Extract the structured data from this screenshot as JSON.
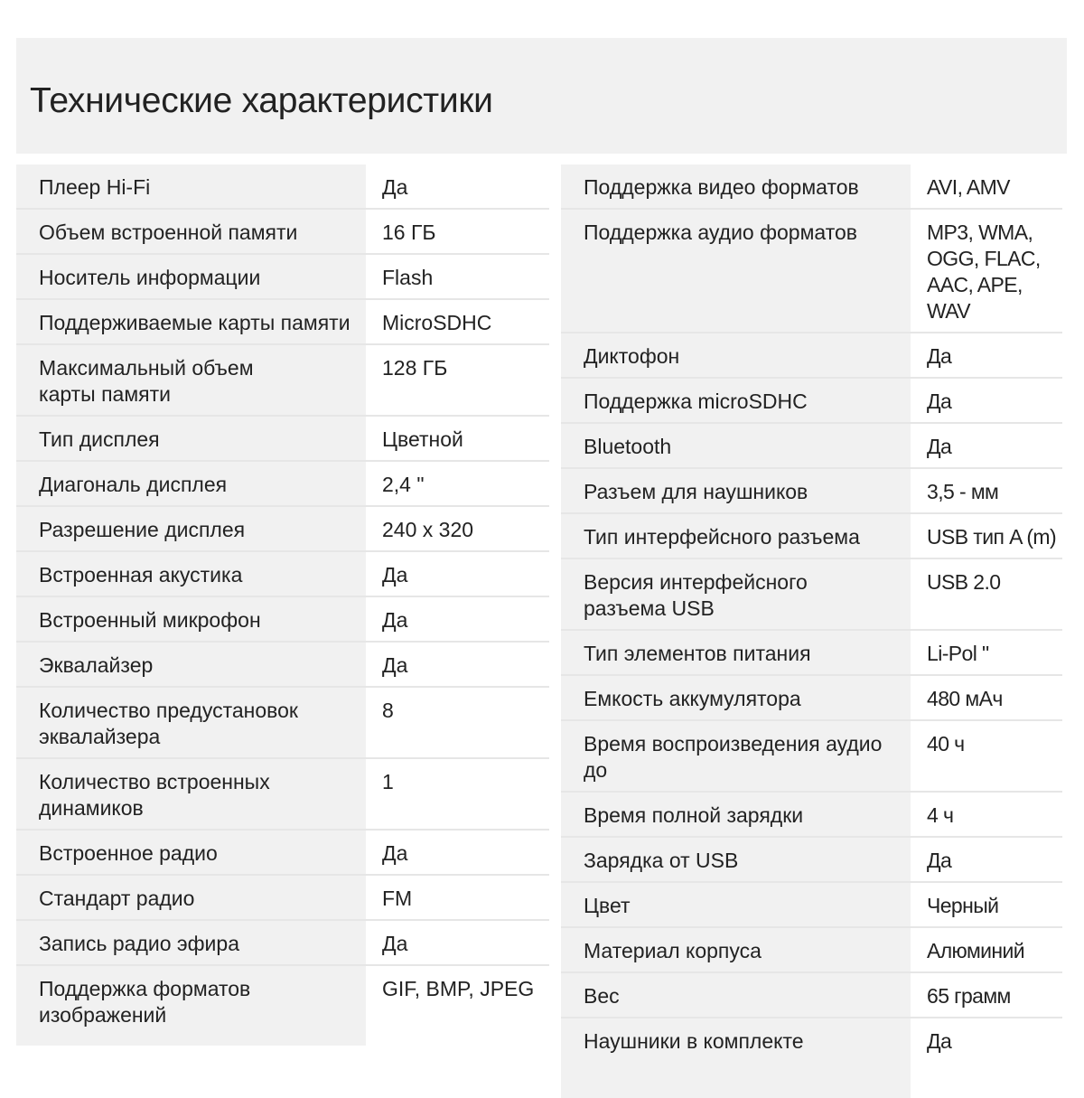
{
  "title": "Технические характеристики",
  "left": [
    {
      "label": "Плеер Hi-Fi",
      "value": "Да"
    },
    {
      "label": "Объем встроенной памяти",
      "value": "16 ГБ"
    },
    {
      "label": "Носитель информации",
      "value": "Flash"
    },
    {
      "label": "Поддерживаемые карты памяти",
      "value": "MicroSDHC"
    },
    {
      "label": "Максимальный объем\nкарты памяти",
      "value": "128 ГБ"
    },
    {
      "label": "Тип дисплея",
      "value": "Цветной"
    },
    {
      "label": "Диагональ дисплея",
      "value": "2,4 \""
    },
    {
      "label": "Разрешение дисплея",
      "value": "240 x 320"
    },
    {
      "label": "Встроенная акустика",
      "value": "Да"
    },
    {
      "label": "Встроенный микрофон",
      "value": "Да"
    },
    {
      "label": "Эквалайзер",
      "value": "Да"
    },
    {
      "label": "Количество предустановок\nэквалайзера",
      "value": "8"
    },
    {
      "label": "Количество встроенных\nдинамиков",
      "value": "1"
    },
    {
      "label": "Встроенное радио",
      "value": "Да"
    },
    {
      "label": "Стандарт радио",
      "value": "FM"
    },
    {
      "label": "Запись радио эфира",
      "value": "Да"
    },
    {
      "label": "Поддержка форматов\nизображений",
      "value": "GIF, BMP, JPEG"
    }
  ],
  "right": [
    {
      "label": "Поддержка видео форматов",
      "value": "AVI, AMV"
    },
    {
      "label": "Поддержка аудио форматов",
      "value": "MP3, WMA,\nOGG, FLAC,\nAAC, APE, WAV"
    },
    {
      "label": "Диктофон",
      "value": "Да"
    },
    {
      "label": "Поддержка microSDHC",
      "value": "Да"
    },
    {
      "label": "Bluetooth",
      "value": "Да"
    },
    {
      "label": "Разъем для наушников",
      "value": "3,5 - мм"
    },
    {
      "label": "Тип интерфейсного разъема",
      "value": "USB тип A (m)"
    },
    {
      "label": "Версия интерфейсного\nразъема USB",
      "value": "USB 2.0"
    },
    {
      "label": "Тип элементов питания",
      "value": "Li-Pol \""
    },
    {
      "label": "Емкость аккумулятора",
      "value": "480 мАч"
    },
    {
      "label": "Время воспроизведения аудио до",
      "value": "40 ч"
    },
    {
      "label": "Время полной зарядки",
      "value": "4 ч"
    },
    {
      "label": "Зарядка от USB",
      "value": "Да"
    },
    {
      "label": "Цвет",
      "value": "Черный"
    },
    {
      "label": "Материал корпуса",
      "value": "Алюминий"
    },
    {
      "label": "Вес",
      "value": "65 грамм"
    },
    {
      "label": "Наушники в комплекте",
      "value": "Да"
    }
  ]
}
